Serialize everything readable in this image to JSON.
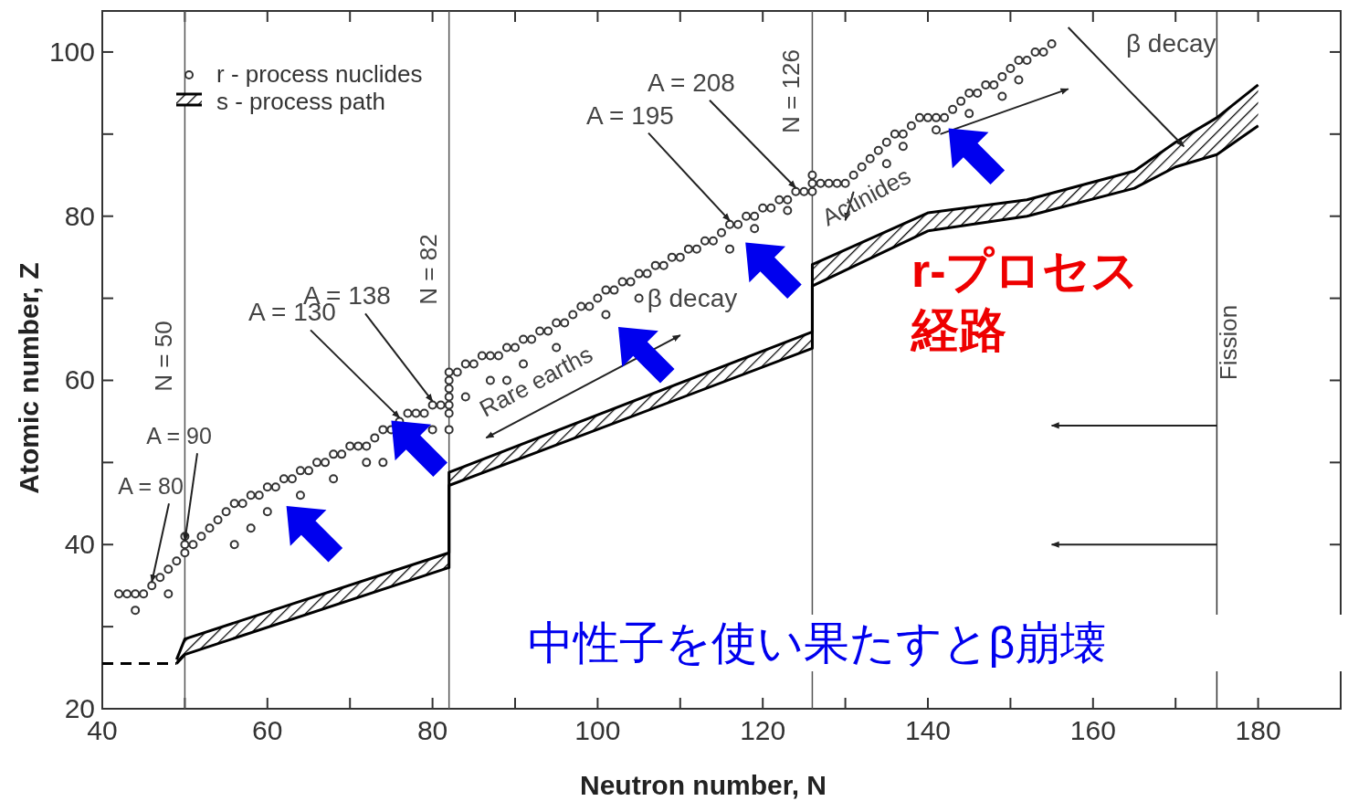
{
  "chart_data": {
    "type": "scatter",
    "xlabel": "Neutron number, N",
    "ylabel": "Atomic number, Z",
    "xlim": [
      40,
      190
    ],
    "ylim": [
      20,
      105
    ],
    "xticks": [
      40,
      {
        "value": 50,
        "label": null
      },
      60,
      {
        "value": 70,
        "label": null
      },
      80,
      {
        "value": 90,
        "label": null
      },
      100,
      {
        "value": 110,
        "label": null
      },
      120,
      {
        "value": 130,
        "label": null
      },
      140,
      {
        "value": 150,
        "label": null
      },
      160,
      {
        "value": 170,
        "label": null
      },
      180
    ],
    "yticks": [
      20,
      {
        "value": 30,
        "label": null
      },
      40,
      {
        "value": 50,
        "label": null
      },
      60,
      {
        "value": 70,
        "label": null
      },
      80,
      {
        "value": 90,
        "label": null
      },
      100
    ],
    "legend": "top left",
    "series": [
      {
        "name": "r - process nuclides",
        "color": "#333333",
        "marker": "circle",
        "x": [
          42,
          43,
          44,
          45,
          46,
          47,
          48,
          49,
          50,
          50,
          50,
          44,
          48,
          51,
          52,
          53,
          54,
          55,
          56,
          57,
          58,
          59,
          60,
          61,
          62,
          63,
          64,
          65,
          66,
          67,
          68,
          69,
          70,
          71,
          72,
          73,
          74,
          75,
          76,
          77,
          78,
          79,
          80,
          81,
          82,
          82,
          82,
          82,
          82,
          82,
          56,
          58,
          60,
          64,
          68,
          72,
          74,
          80,
          82,
          84,
          83,
          84,
          85,
          86,
          87,
          88,
          89,
          90,
          91,
          92,
          93,
          94,
          95,
          96,
          97,
          98,
          99,
          100,
          101,
          102,
          103,
          104,
          105,
          106,
          107,
          108,
          109,
          110,
          111,
          112,
          113,
          114,
          115,
          116,
          117,
          118,
          119,
          120,
          121,
          122,
          123,
          124,
          125,
          126,
          126,
          126,
          87,
          89,
          91,
          95,
          101,
          105,
          116,
          119,
          123,
          127,
          128,
          129,
          130,
          131,
          132,
          133,
          134,
          135,
          136,
          137,
          138,
          139,
          140,
          141,
          142,
          143,
          144,
          145,
          146,
          147,
          148,
          149,
          150,
          151,
          152,
          153,
          154,
          155,
          135,
          137,
          141,
          145,
          149,
          151
        ],
        "values": [
          34,
          34,
          34,
          34,
          35,
          36,
          37,
          38,
          39,
          40,
          41,
          32,
          34,
          40,
          41,
          42,
          43,
          44,
          45,
          45,
          46,
          46,
          47,
          47,
          48,
          48,
          49,
          49,
          50,
          50,
          51,
          51,
          52,
          52,
          52,
          53,
          54,
          54,
          55,
          56,
          56,
          56,
          57,
          57,
          56,
          57,
          58,
          59,
          60,
          61,
          40,
          42,
          44,
          46,
          48,
          50,
          50,
          54,
          54,
          58,
          61,
          62,
          62,
          63,
          63,
          63,
          64,
          64,
          65,
          65,
          66,
          66,
          67,
          67,
          68,
          69,
          69,
          70,
          71,
          71,
          72,
          72,
          73,
          73,
          74,
          74,
          75,
          75,
          76,
          76,
          77,
          77,
          78,
          79,
          79,
          80,
          80,
          81,
          81,
          82,
          82,
          83,
          83,
          83,
          84,
          85,
          60,
          60,
          62,
          64,
          68,
          70,
          76,
          78.5,
          80.7,
          84,
          84,
          84,
          84,
          85,
          86,
          87,
          88,
          89,
          90,
          90,
          91,
          92,
          92,
          92,
          92,
          93,
          94,
          95,
          95,
          96,
          96,
          97,
          98,
          99,
          99,
          100,
          100,
          101,
          86.4,
          88.5,
          90.5,
          92.5,
          94.6,
          96.6
        ]
      },
      {
        "name": "s - process path",
        "type": "line",
        "color": "#000000",
        "x": [
          49,
          50,
          82,
          82,
          126,
          126,
          140,
          152,
          165,
          170,
          175,
          180
        ],
        "values": [
          26,
          28.5,
          39,
          48.8,
          65.9,
          74.1,
          80.4,
          82,
          85.5,
          89,
          92,
          96
        ]
      },
      {
        "type": "line",
        "color": "#000000",
        "x": [
          49,
          50,
          82,
          82,
          126,
          126,
          140,
          152,
          165,
          170,
          175,
          180
        ],
        "values": [
          25.5,
          26.6,
          37.2,
          47.2,
          63.9,
          71.5,
          78.2,
          80,
          83.4,
          86,
          87.5,
          91
        ]
      },
      {
        "type": "line",
        "color": "#000000",
        "line_style": "dashed",
        "x": [
          40,
          49
        ],
        "values": [
          25.5,
          25.5
        ]
      }
    ],
    "ref_lines": [
      {
        "axis": "x",
        "value": 50,
        "label": "N = 50",
        "color": "#555555"
      },
      {
        "axis": "x",
        "value": 82,
        "label": "N = 82",
        "color": "#555555"
      },
      {
        "axis": "x",
        "value": 126,
        "label": "N = 126",
        "color": "#555555"
      },
      {
        "axis": "x",
        "value": 175,
        "label": "Fission",
        "color": "#333333"
      }
    ],
    "annotations": [
      {
        "text": "A = 80",
        "x": 46,
        "y": 35
      },
      {
        "text": "A = 90",
        "x": 50,
        "y": 40
      },
      {
        "text": "A = 130",
        "x": 76,
        "y": 55
      },
      {
        "text": "A = 138",
        "x": 80,
        "y": 57
      },
      {
        "text": "A = 195",
        "x": 116,
        "y": 79
      },
      {
        "text": "A = 208",
        "x": 124,
        "y": 83
      },
      "Rare earths",
      "β decay",
      "Actinides",
      "β decay",
      "r-プロセス経路",
      "中性子を使い果たすとβ崩壊"
    ]
  }
}
